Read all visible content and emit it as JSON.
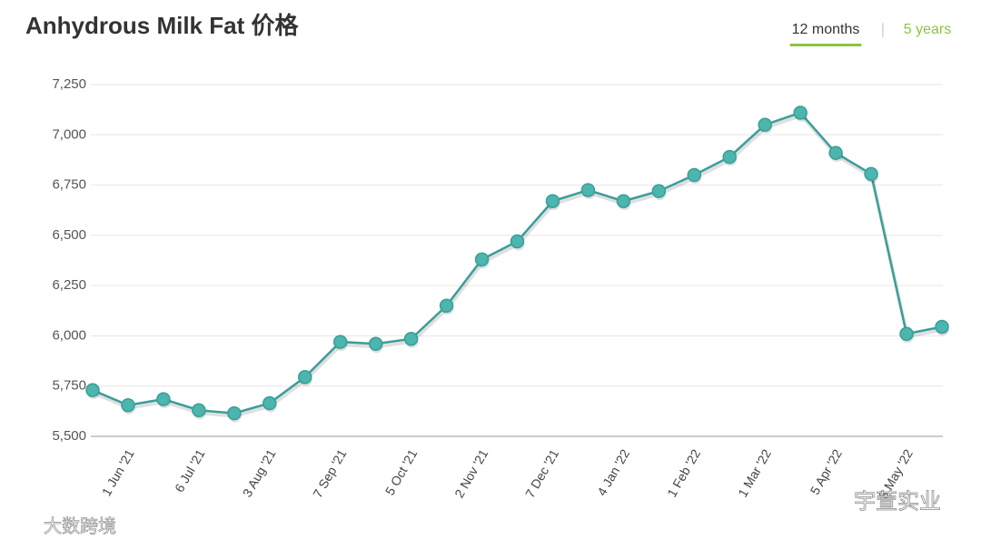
{
  "chart_data": {
    "type": "line",
    "title": "Anhydrous Milk Fat 价格",
    "toggles": [
      "12 months",
      "5 years"
    ],
    "active_toggle": 0,
    "categories": [
      null,
      "1 Jun '21",
      null,
      "6 Jul '21",
      null,
      "3 Aug '21",
      null,
      "7 Sep '21",
      null,
      "5 Oct '21",
      null,
      "2 Nov '21",
      null,
      "7 Dec '21",
      null,
      "4 Jan '22",
      null,
      "1 Feb '22",
      null,
      "1 Mar '22",
      null,
      "5 Apr '22",
      null,
      "3 May '22",
      null
    ],
    "series": [
      {
        "name": "Anhydrous Milk Fat",
        "color": "#3a9e99",
        "values": [
          5730,
          5655,
          5685,
          5630,
          5615,
          5665,
          5795,
          5970,
          5960,
          5985,
          6150,
          6380,
          6470,
          6670,
          6725,
          6670,
          6720,
          6800,
          6890,
          7050,
          7110,
          6910,
          6805,
          6010,
          6045
        ]
      }
    ],
    "ylim": [
      5500,
      7250
    ],
    "yticks": [
      {
        "value": 5500,
        "label": "5,500"
      },
      {
        "value": 5750,
        "label": "5,750"
      },
      {
        "value": 6000,
        "label": "6,000"
      },
      {
        "value": 6250,
        "label": "6,250"
      },
      {
        "value": 6500,
        "label": "6,500"
      },
      {
        "value": 6750,
        "label": "6,750"
      },
      {
        "value": 7000,
        "label": "7,000"
      },
      {
        "value": 7250,
        "label": "7,250"
      }
    ],
    "grid": true
  },
  "watermarks": [
    "大数跨境",
    "宇萱实业"
  ]
}
